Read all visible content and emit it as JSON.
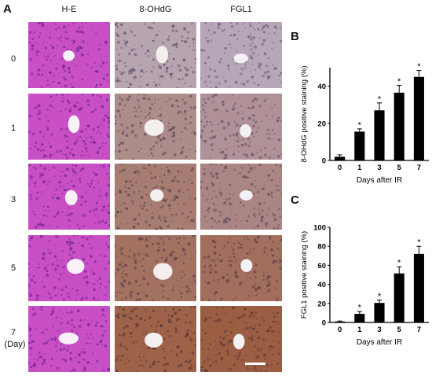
{
  "figure": {
    "panel_labels": [
      "A",
      "B",
      "C"
    ],
    "columns": [
      "H-E",
      "8-OHdG",
      "FGL1"
    ],
    "rows": [
      "0",
      "1",
      "3",
      "5",
      "7"
    ],
    "row_unit": "(Day)",
    "stain_colors": {
      "H-E": {
        "bg": "#c94fc4",
        "nuclei": "#7d2a9a",
        "vessel": "#fbf1fb"
      },
      "8-OHdG": {
        "bg": "#b7a8b4",
        "nuclei": "#6f5f7c",
        "vessel": "#f4efef"
      },
      "FGL1": {
        "bg": "#b8a9be",
        "nuclei": "#7b6988",
        "vessel": "#f4f1f5"
      }
    },
    "brown_intensity": {
      "8-OHdG": [
        0.05,
        0.35,
        0.55,
        0.7,
        0.9
      ],
      "FGL1": [
        0.05,
        0.3,
        0.45,
        0.75,
        0.95
      ]
    }
  },
  "chart_data": [
    {
      "type": "bar",
      "panel": "B",
      "categories": [
        "0",
        "1",
        "3",
        "5",
        "7"
      ],
      "values": [
        2,
        15.5,
        27,
        36.5,
        45
      ],
      "errors": [
        1,
        1.5,
        4,
        4,
        3.5
      ],
      "significance": [
        "",
        "*",
        "*",
        "*",
        "*"
      ],
      "xlabel": "Days after IR",
      "ylabel": "8-OHdG positive staining (%)",
      "ylim": [
        0,
        50
      ],
      "yticks": [
        "0",
        "20",
        "40"
      ]
    },
    {
      "type": "bar",
      "panel": "C",
      "categories": [
        "0",
        "1",
        "3",
        "5",
        "7"
      ],
      "values": [
        1,
        9,
        20.5,
        51.5,
        72
      ],
      "errors": [
        0.5,
        2.5,
        3,
        7,
        8
      ],
      "significance": [
        "",
        "*",
        "*",
        "*",
        "*"
      ],
      "xlabel": "Days after IR",
      "ylabel": "FGL1 positive staining (%)",
      "ylim": [
        0,
        100
      ],
      "yticks": [
        "0",
        "20",
        "40",
        "60",
        "80",
        "100"
      ]
    }
  ]
}
